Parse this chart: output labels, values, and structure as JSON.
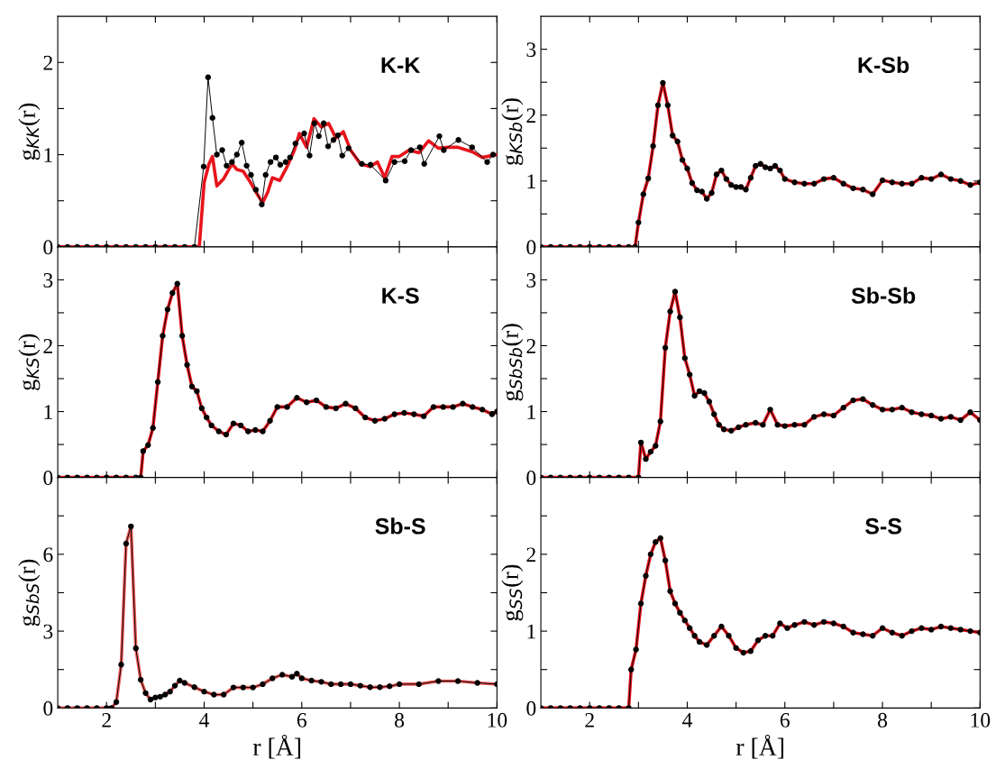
{
  "chart_data": [
    {
      "type": "line",
      "ylabel": "g$_{KK}$(r)",
      "annotations": [
        "K-K"
      ],
      "xlim": [
        1,
        10
      ],
      "ylim": [
        0,
        2.5
      ],
      "tick_labels": "y",
      "xticks": [
        2,
        {
          "value": 3,
          "label": null
        },
        4,
        {
          "value": 5,
          "label": null
        },
        6,
        {
          "value": 7,
          "label": null
        },
        8,
        {
          "value": 9,
          "label": null
        },
        10
      ],
      "yticks": [
        0,
        {
          "value": 0.5,
          "label": null
        },
        1,
        {
          "value": 1.5,
          "label": null
        },
        2
      ],
      "series": [
        {
          "color": "#000000",
          "marker": "circle",
          "line_style": "solid",
          "x": [
            1.0,
            1.2,
            1.4,
            1.6,
            1.8,
            2.0,
            2.2,
            2.4,
            2.6,
            2.8,
            3.0,
            3.2,
            3.4,
            3.6,
            3.8,
            3.99,
            4.08,
            4.17,
            4.26,
            4.37,
            4.46,
            4.57,
            4.67,
            4.77,
            4.87,
            4.96,
            5.06,
            5.18,
            5.26,
            5.36,
            5.47,
            5.56,
            5.67,
            5.76,
            5.87,
            6.05,
            6.16,
            6.26,
            6.35,
            6.45,
            6.54,
            6.65,
            6.74,
            6.83,
            6.96,
            7.23,
            7.41,
            7.72,
            7.9,
            8.11,
            8.24,
            8.42,
            8.51,
            8.82,
            8.91,
            9.21,
            9.49,
            9.8,
            9.92
          ],
          "values": [
            0,
            0,
            0,
            0,
            0,
            0,
            0,
            0,
            0,
            0,
            0,
            0,
            0,
            0,
            0,
            0.87,
            1.84,
            1.4,
            1.0,
            1.05,
            0.88,
            0.92,
            1.0,
            1.13,
            0.88,
            0.78,
            0.62,
            0.46,
            0.78,
            0.92,
            0.97,
            0.89,
            0.92,
            0.97,
            1.12,
            1.23,
            0.99,
            1.34,
            1.2,
            1.34,
            1.09,
            1.16,
            1.21,
            0.99,
            1.07,
            0.9,
            0.89,
            0.72,
            0.92,
            0.93,
            1.05,
            1.08,
            0.9,
            1.2,
            1.05,
            1.16,
            1.08,
            0.92,
            1.0
          ]
        },
        {
          "color": "#e8141c",
          "marker": "none",
          "line_style": "solid",
          "x": [
            1.0,
            3.9,
            4.0,
            4.1,
            4.17,
            4.26,
            4.4,
            4.57,
            4.67,
            4.8,
            4.96,
            5.1,
            5.2,
            5.3,
            5.4,
            5.55,
            5.7,
            5.85,
            5.95,
            6.1,
            6.25,
            6.4,
            6.55,
            6.7,
            6.85,
            7.0,
            7.2,
            7.4,
            7.55,
            7.7,
            7.85,
            8.0,
            8.2,
            8.4,
            8.6,
            8.8,
            9.0,
            9.2,
            9.5,
            9.7,
            10.0
          ],
          "values": [
            0,
            0,
            0.7,
            0.9,
            0.98,
            0.66,
            0.74,
            0.9,
            0.84,
            0.82,
            0.69,
            0.56,
            0.48,
            0.59,
            0.75,
            0.72,
            0.87,
            1.05,
            1.23,
            1.08,
            1.39,
            1.3,
            1.34,
            1.18,
            1.25,
            1.05,
            0.9,
            0.87,
            0.92,
            0.75,
            0.98,
            0.98,
            1.05,
            1.02,
            1.15,
            1.07,
            1.08,
            1.08,
            1.03,
            0.97,
            1.0
          ]
        }
      ]
    },
    {
      "type": "line",
      "ylabel": "g$_{KSb}$(r)",
      "annotations": [
        "K-Sb"
      ],
      "xlim": [
        1,
        10
      ],
      "ylim": [
        0,
        3.5
      ],
      "tick_labels": "y",
      "xticks": [
        2,
        {
          "value": 3,
          "label": null
        },
        4,
        {
          "value": 5,
          "label": null
        },
        6,
        {
          "value": 7,
          "label": null
        },
        8,
        {
          "value": 9,
          "label": null
        },
        10
      ],
      "yticks": [
        0,
        {
          "value": 0.5,
          "label": null
        },
        1,
        {
          "value": 1.5,
          "label": null
        },
        2,
        {
          "value": 2.5,
          "label": null
        },
        3
      ],
      "series": [
        {
          "color": "#000000",
          "marker": "circle",
          "line_style": "solid",
          "x": [
            1.0,
            1.2,
            1.4,
            1.6,
            1.8,
            2.0,
            2.2,
            2.4,
            2.6,
            2.8,
            2.93,
            3.0,
            3.1,
            3.2,
            3.3,
            3.4,
            3.5,
            3.6,
            3.7,
            3.8,
            3.9,
            4.0,
            4.1,
            4.2,
            4.3,
            4.4,
            4.5,
            4.6,
            4.7,
            4.8,
            4.9,
            5.0,
            5.1,
            5.2,
            5.3,
            5.4,
            5.5,
            5.6,
            5.7,
            5.8,
            5.9,
            6.0,
            6.2,
            6.4,
            6.6,
            6.8,
            7.0,
            7.2,
            7.4,
            7.6,
            7.8,
            8.0,
            8.2,
            8.4,
            8.6,
            8.8,
            9.0,
            9.2,
            9.4,
            9.6,
            9.8,
            10.0
          ],
          "values": [
            0,
            0,
            0,
            0,
            0,
            0,
            0,
            0,
            0,
            0,
            0,
            0.37,
            0.8,
            1.04,
            1.53,
            2.15,
            2.49,
            2.15,
            1.69,
            1.6,
            1.32,
            1.19,
            0.97,
            0.86,
            0.84,
            0.73,
            0.82,
            1.1,
            1.16,
            1.03,
            0.94,
            0.91,
            0.91,
            0.87,
            1.05,
            1.23,
            1.26,
            1.21,
            1.19,
            1.23,
            1.16,
            1.03,
            0.98,
            0.96,
            0.96,
            1.03,
            1.05,
            0.96,
            0.89,
            0.87,
            0.8,
            1.01,
            0.98,
            0.96,
            0.96,
            1.05,
            1.03,
            1.1,
            1.03,
            1.0,
            0.94,
            0.98
          ]
        },
        {
          "color": "#e8141c",
          "marker": "none",
          "line_style": "solid",
          "x": [
            1.0,
            1.2,
            1.4,
            1.6,
            1.8,
            2.0,
            2.2,
            2.4,
            2.6,
            2.8,
            2.93,
            3.0,
            3.1,
            3.2,
            3.3,
            3.4,
            3.5,
            3.6,
            3.7,
            3.8,
            3.9,
            4.0,
            4.1,
            4.2,
            4.3,
            4.4,
            4.5,
            4.6,
            4.7,
            4.8,
            4.9,
            5.0,
            5.1,
            5.2,
            5.3,
            5.4,
            5.5,
            5.6,
            5.7,
            5.8,
            5.9,
            6.0,
            6.2,
            6.4,
            6.6,
            6.8,
            7.0,
            7.2,
            7.4,
            7.6,
            7.8,
            8.0,
            8.2,
            8.4,
            8.6,
            8.8,
            9.0,
            9.2,
            9.4,
            9.6,
            9.8,
            10.0
          ],
          "values": [
            0,
            0,
            0,
            0,
            0,
            0,
            0,
            0,
            0,
            0,
            0,
            0.37,
            0.8,
            1.04,
            1.53,
            2.15,
            2.49,
            2.15,
            1.69,
            1.6,
            1.32,
            1.19,
            0.97,
            0.86,
            0.84,
            0.73,
            0.82,
            1.1,
            1.16,
            1.03,
            0.94,
            0.91,
            0.91,
            0.87,
            1.05,
            1.23,
            1.26,
            1.21,
            1.19,
            1.23,
            1.16,
            1.03,
            0.98,
            0.96,
            0.96,
            1.03,
            1.05,
            0.96,
            0.89,
            0.87,
            0.8,
            1.01,
            0.98,
            0.96,
            0.96,
            1.05,
            1.03,
            1.1,
            1.03,
            1.0,
            0.94,
            0.98
          ]
        }
      ]
    },
    {
      "type": "line",
      "ylabel": "g$_{KS}$(r)",
      "annotations": [
        "K-S"
      ],
      "xlim": [
        1,
        10
      ],
      "ylim": [
        0,
        3.5
      ],
      "tick_labels": "y",
      "xticks": [
        2,
        {
          "value": 3,
          "label": null
        },
        4,
        {
          "value": 5,
          "label": null
        },
        6,
        {
          "value": 7,
          "label": null
        },
        8,
        {
          "value": 9,
          "label": null
        },
        10
      ],
      "yticks": [
        0,
        {
          "value": 0.5,
          "label": null
        },
        1,
        {
          "value": 1.5,
          "label": null
        },
        2,
        {
          "value": 2.5,
          "label": null
        },
        3
      ],
      "series": [
        {
          "color": "#000000",
          "marker": "circle",
          "line_style": "solid",
          "x": [
            1.0,
            1.2,
            1.4,
            1.6,
            1.8,
            2.0,
            2.2,
            2.4,
            2.6,
            2.7,
            2.75,
            2.85,
            2.95,
            3.05,
            3.15,
            3.25,
            3.35,
            3.45,
            3.55,
            3.65,
            3.75,
            3.85,
            3.95,
            4.05,
            4.15,
            4.3,
            4.45,
            4.6,
            4.75,
            4.9,
            5.05,
            5.2,
            5.35,
            5.5,
            5.7,
            5.9,
            6.1,
            6.3,
            6.5,
            6.7,
            6.9,
            7.1,
            7.3,
            7.5,
            7.7,
            7.9,
            8.1,
            8.3,
            8.5,
            8.7,
            8.9,
            9.1,
            9.3,
            9.5,
            9.7,
            9.9,
            10.0
          ],
          "values": [
            0,
            0,
            0,
            0,
            0,
            0,
            0,
            0,
            0,
            0,
            0.4,
            0.49,
            0.75,
            1.45,
            2.15,
            2.55,
            2.8,
            2.94,
            2.15,
            1.71,
            1.38,
            1.31,
            1.05,
            0.91,
            0.79,
            0.7,
            0.65,
            0.82,
            0.79,
            0.7,
            0.72,
            0.7,
            0.86,
            1.07,
            1.07,
            1.21,
            1.14,
            1.17,
            1.07,
            1.05,
            1.12,
            1.05,
            0.91,
            0.86,
            0.89,
            0.96,
            0.98,
            0.96,
            0.93,
            1.07,
            1.07,
            1.07,
            1.12,
            1.07,
            1.03,
            0.96,
            1.0
          ]
        },
        {
          "color": "#e8141c",
          "marker": "none",
          "line_style": "solid",
          "x": [
            1.0,
            1.2,
            1.4,
            1.6,
            1.8,
            2.0,
            2.2,
            2.4,
            2.6,
            2.7,
            2.75,
            2.85,
            2.95,
            3.05,
            3.15,
            3.25,
            3.35,
            3.45,
            3.55,
            3.65,
            3.75,
            3.85,
            3.95,
            4.05,
            4.15,
            4.3,
            4.45,
            4.6,
            4.75,
            4.9,
            5.05,
            5.2,
            5.35,
            5.5,
            5.7,
            5.9,
            6.1,
            6.3,
            6.5,
            6.7,
            6.9,
            7.1,
            7.3,
            7.5,
            7.7,
            7.9,
            8.1,
            8.3,
            8.5,
            8.7,
            8.9,
            9.1,
            9.3,
            9.5,
            9.7,
            9.9,
            10.0
          ],
          "values": [
            0,
            0,
            0,
            0,
            0,
            0,
            0,
            0,
            0,
            0,
            0.4,
            0.49,
            0.75,
            1.45,
            2.15,
            2.55,
            2.8,
            2.94,
            2.15,
            1.71,
            1.38,
            1.31,
            1.05,
            0.91,
            0.79,
            0.7,
            0.65,
            0.82,
            0.79,
            0.7,
            0.72,
            0.7,
            0.86,
            1.07,
            1.07,
            1.21,
            1.14,
            1.17,
            1.07,
            1.05,
            1.12,
            1.05,
            0.91,
            0.86,
            0.89,
            0.96,
            0.98,
            0.96,
            0.93,
            1.07,
            1.07,
            1.07,
            1.12,
            1.07,
            1.03,
            0.96,
            1.0
          ]
        }
      ]
    },
    {
      "type": "line",
      "ylabel": "g$_{SbSb}$(r)",
      "annotations": [
        "Sb-Sb"
      ],
      "xlim": [
        1,
        10
      ],
      "ylim": [
        0,
        3.5
      ],
      "tick_labels": "y",
      "xticks": [
        2,
        {
          "value": 3,
          "label": null
        },
        4,
        {
          "value": 5,
          "label": null
        },
        6,
        {
          "value": 7,
          "label": null
        },
        8,
        {
          "value": 9,
          "label": null
        },
        10
      ],
      "yticks": [
        0,
        {
          "value": 0.5,
          "label": null
        },
        1,
        {
          "value": 1.5,
          "label": null
        },
        2,
        {
          "value": 2.5,
          "label": null
        },
        3
      ],
      "series": [
        {
          "color": "#000000",
          "marker": "circle",
          "line_style": "solid",
          "x": [
            1.0,
            1.2,
            1.4,
            1.6,
            1.8,
            2.0,
            2.2,
            2.4,
            2.6,
            2.8,
            3.0,
            3.05,
            3.15,
            3.25,
            3.35,
            3.45,
            3.55,
            3.65,
            3.75,
            3.85,
            3.95,
            4.05,
            4.15,
            4.25,
            4.35,
            4.45,
            4.55,
            4.65,
            4.75,
            4.9,
            5.05,
            5.2,
            5.4,
            5.55,
            5.7,
            5.85,
            6.0,
            6.2,
            6.4,
            6.6,
            6.8,
            7.0,
            7.2,
            7.4,
            7.6,
            7.8,
            8.0,
            8.2,
            8.4,
            8.6,
            8.8,
            9.0,
            9.2,
            9.4,
            9.6,
            9.8,
            10.0
          ],
          "values": [
            0,
            0,
            0,
            0,
            0,
            0,
            0,
            0,
            0,
            0,
            0,
            0.53,
            0.28,
            0.39,
            0.48,
            0.85,
            1.97,
            2.52,
            2.82,
            2.43,
            1.81,
            1.56,
            1.24,
            1.31,
            1.28,
            1.15,
            0.96,
            0.8,
            0.73,
            0.71,
            0.76,
            0.8,
            0.83,
            0.8,
            1.03,
            0.8,
            0.78,
            0.8,
            0.8,
            0.92,
            0.96,
            0.94,
            1.06,
            1.17,
            1.19,
            1.1,
            1.03,
            1.03,
            1.06,
            0.99,
            0.96,
            0.94,
            0.89,
            0.92,
            0.87,
            0.99,
            0.87
          ]
        },
        {
          "color": "#e8141c",
          "marker": "none",
          "line_style": "solid",
          "x": [
            1.0,
            1.2,
            1.4,
            1.6,
            1.8,
            2.0,
            2.2,
            2.4,
            2.6,
            2.8,
            3.0,
            3.05,
            3.15,
            3.25,
            3.35,
            3.45,
            3.55,
            3.65,
            3.75,
            3.85,
            3.95,
            4.05,
            4.15,
            4.25,
            4.35,
            4.45,
            4.55,
            4.65,
            4.75,
            4.9,
            5.05,
            5.2,
            5.4,
            5.55,
            5.7,
            5.85,
            6.0,
            6.2,
            6.4,
            6.6,
            6.8,
            7.0,
            7.2,
            7.4,
            7.6,
            7.8,
            8.0,
            8.2,
            8.4,
            8.6,
            8.8,
            9.0,
            9.2,
            9.4,
            9.6,
            9.8,
            10.0
          ],
          "values": [
            0,
            0,
            0,
            0,
            0,
            0,
            0,
            0,
            0,
            0,
            0,
            0.53,
            0.28,
            0.39,
            0.48,
            0.85,
            1.97,
            2.52,
            2.82,
            2.43,
            1.81,
            1.56,
            1.24,
            1.31,
            1.28,
            1.15,
            0.96,
            0.8,
            0.73,
            0.71,
            0.76,
            0.8,
            0.83,
            0.8,
            1.03,
            0.8,
            0.78,
            0.8,
            0.8,
            0.92,
            0.96,
            0.94,
            1.06,
            1.17,
            1.19,
            1.1,
            1.03,
            1.03,
            1.06,
            0.99,
            0.96,
            0.94,
            0.89,
            0.92,
            0.87,
            0.99,
            0.87
          ]
        }
      ]
    },
    {
      "type": "line",
      "ylabel": "g$_{SbS}$(r)",
      "xlabel": "r [Å]",
      "annotations": [
        "Sb-S"
      ],
      "xlim": [
        1,
        10
      ],
      "ylim": [
        0,
        9
      ],
      "xticks": [
        2,
        {
          "value": 3,
          "label": null
        },
        4,
        {
          "value": 5,
          "label": null
        },
        6,
        {
          "value": 7,
          "label": null
        },
        8,
        {
          "value": 9,
          "label": null
        },
        10
      ],
      "yticks": [
        0,
        {
          "value": 1.5,
          "label": null
        },
        3,
        {
          "value": 4.5,
          "label": null
        },
        6,
        {
          "value": 7.5,
          "label": null
        }
      ],
      "series": [
        {
          "color": "#000000",
          "marker": "circle",
          "line_style": "solid",
          "x": [
            1.0,
            1.2,
            1.4,
            1.6,
            1.8,
            2.0,
            2.1,
            2.2,
            2.3,
            2.4,
            2.5,
            2.6,
            2.7,
            2.8,
            2.9,
            3.0,
            3.1,
            3.2,
            3.3,
            3.4,
            3.5,
            3.6,
            3.8,
            4.0,
            4.2,
            4.4,
            4.6,
            4.8,
            5.0,
            5.2,
            5.4,
            5.6,
            5.8,
            5.9,
            6.0,
            6.2,
            6.4,
            6.6,
            6.8,
            7.0,
            7.2,
            7.4,
            7.6,
            7.8,
            8.0,
            8.4,
            8.8,
            9.2,
            9.6,
            10.0
          ],
          "values": [
            0,
            0,
            0,
            0,
            0,
            0,
            0,
            0.23,
            1.69,
            6.42,
            7.09,
            2.33,
            1.1,
            0.58,
            0.33,
            0.41,
            0.44,
            0.52,
            0.64,
            0.87,
            1.07,
            0.98,
            0.81,
            0.64,
            0.52,
            0.52,
            0.8,
            0.8,
            0.8,
            0.93,
            1.16,
            1.3,
            1.22,
            1.34,
            1.16,
            1.07,
            1.02,
            0.93,
            0.93,
            0.93,
            0.87,
            0.81,
            0.81,
            0.85,
            0.93,
            0.93,
            1.05,
            1.05,
            0.98,
            0.93
          ]
        },
        {
          "color": "#f05a5a",
          "marker": "none",
          "line_style": "solid",
          "x": [
            1.0,
            1.2,
            1.4,
            1.6,
            1.8,
            2.0,
            2.1,
            2.2,
            2.3,
            2.4,
            2.5,
            2.6,
            2.7,
            2.8,
            2.9,
            3.0,
            3.1,
            3.2,
            3.3,
            3.4,
            3.5,
            3.6,
            3.8,
            4.0,
            4.2,
            4.4,
            4.6,
            4.8,
            5.0,
            5.2,
            5.4,
            5.6,
            5.8,
            5.9,
            6.0,
            6.2,
            6.4,
            6.6,
            6.8,
            7.0,
            7.2,
            7.4,
            7.6,
            7.8,
            8.0,
            8.4,
            8.8,
            9.2,
            9.6,
            10.0
          ],
          "values": [
            0,
            0,
            0,
            0,
            0,
            0,
            0,
            0.23,
            1.69,
            6.42,
            7.09,
            2.33,
            1.1,
            0.58,
            0.33,
            0.41,
            0.44,
            0.52,
            0.64,
            0.87,
            1.07,
            0.98,
            0.81,
            0.64,
            0.52,
            0.52,
            0.8,
            0.8,
            0.8,
            0.93,
            1.16,
            1.3,
            1.22,
            1.34,
            1.16,
            1.07,
            1.02,
            0.93,
            0.93,
            0.93,
            0.87,
            0.81,
            0.81,
            0.85,
            0.93,
            0.93,
            1.05,
            1.05,
            0.98,
            0.93
          ]
        }
      ]
    },
    {
      "type": "line",
      "ylabel": "g$_{SS}$(r)",
      "xlabel": "r [Å]",
      "annotations": [
        "S-S"
      ],
      "xlim": [
        1,
        10
      ],
      "ylim": [
        0,
        3
      ],
      "xticks": [
        2,
        {
          "value": 3,
          "label": null
        },
        4,
        {
          "value": 5,
          "label": null
        },
        6,
        {
          "value": 7,
          "label": null
        },
        8,
        {
          "value": 9,
          "label": null
        },
        10
      ],
      "yticks": [
        0,
        {
          "value": 0.5,
          "label": null
        },
        1,
        {
          "value": 1.5,
          "label": null
        },
        2,
        {
          "value": 2.5,
          "label": null
        }
      ],
      "series": [
        {
          "color": "#000000",
          "marker": "circle",
          "line_style": "solid",
          "x": [
            1.0,
            1.2,
            1.4,
            1.6,
            1.8,
            2.0,
            2.2,
            2.4,
            2.6,
            2.8,
            2.85,
            2.95,
            3.05,
            3.15,
            3.25,
            3.35,
            3.45,
            3.55,
            3.65,
            3.75,
            3.85,
            3.95,
            4.05,
            4.15,
            4.25,
            4.4,
            4.55,
            4.7,
            4.85,
            5.0,
            5.15,
            5.3,
            5.45,
            5.6,
            5.75,
            5.9,
            6.05,
            6.2,
            6.4,
            6.6,
            6.8,
            7.0,
            7.2,
            7.4,
            7.6,
            7.8,
            8.0,
            8.2,
            8.4,
            8.6,
            8.8,
            9.0,
            9.2,
            9.4,
            9.6,
            9.8,
            10.0
          ],
          "values": [
            0,
            0,
            0,
            0,
            0,
            0,
            0,
            0,
            0,
            0,
            0.5,
            0.76,
            1.36,
            1.72,
            2.0,
            2.16,
            2.21,
            1.92,
            1.52,
            1.36,
            1.24,
            1.14,
            1.04,
            0.94,
            0.86,
            0.82,
            0.94,
            1.06,
            0.94,
            0.78,
            0.72,
            0.74,
            0.88,
            0.94,
            0.94,
            1.1,
            1.04,
            1.08,
            1.12,
            1.08,
            1.12,
            1.1,
            1.06,
            0.98,
            0.96,
            0.94,
            1.04,
            0.98,
            0.94,
            1.0,
            1.04,
            1.02,
            1.06,
            1.04,
            1.02,
            1.0,
            0.98
          ]
        },
        {
          "color": "#e8141c",
          "marker": "none",
          "line_style": "solid",
          "x": [
            1.0,
            1.2,
            1.4,
            1.6,
            1.8,
            2.0,
            2.2,
            2.4,
            2.6,
            2.8,
            2.85,
            2.95,
            3.05,
            3.15,
            3.25,
            3.35,
            3.45,
            3.55,
            3.65,
            3.75,
            3.85,
            3.95,
            4.05,
            4.15,
            4.25,
            4.4,
            4.55,
            4.7,
            4.85,
            5.0,
            5.15,
            5.3,
            5.45,
            5.6,
            5.75,
            5.9,
            6.05,
            6.2,
            6.4,
            6.6,
            6.8,
            7.0,
            7.2,
            7.4,
            7.6,
            7.8,
            8.0,
            8.2,
            8.4,
            8.6,
            8.8,
            9.0,
            9.2,
            9.4,
            9.6,
            9.8,
            10.0
          ],
          "values": [
            0,
            0,
            0,
            0,
            0,
            0,
            0,
            0,
            0,
            0,
            0.5,
            0.76,
            1.36,
            1.72,
            2.0,
            2.16,
            2.21,
            1.92,
            1.52,
            1.36,
            1.24,
            1.14,
            1.04,
            0.94,
            0.86,
            0.82,
            0.94,
            1.06,
            0.94,
            0.78,
            0.72,
            0.74,
            0.88,
            0.94,
            0.94,
            1.1,
            1.04,
            1.08,
            1.12,
            1.08,
            1.12,
            1.1,
            1.06,
            0.98,
            0.96,
            0.94,
            1.04,
            0.98,
            0.94,
            1.0,
            1.04,
            1.02,
            1.06,
            1.04,
            1.02,
            1.0,
            0.98
          ]
        }
      ]
    }
  ]
}
